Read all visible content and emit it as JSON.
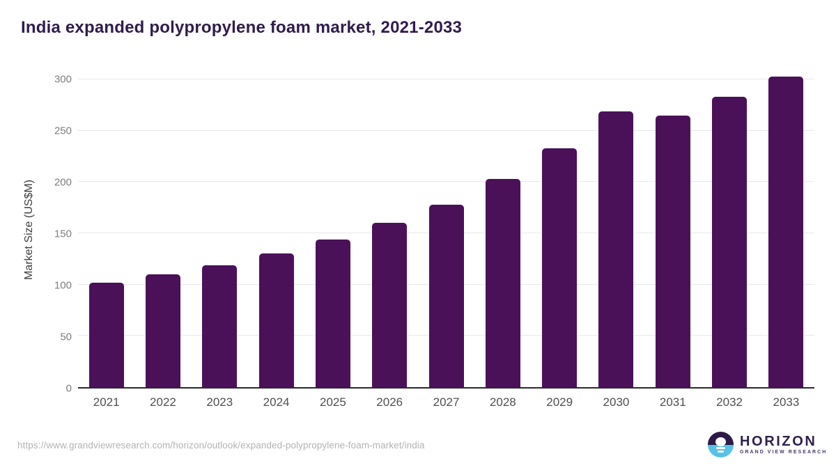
{
  "title": "India expanded polypropylene foam market, 2021-2033",
  "chart_data": {
    "type": "bar",
    "categories": [
      "2021",
      "2022",
      "2023",
      "2024",
      "2025",
      "2026",
      "2027",
      "2028",
      "2029",
      "2030",
      "2031",
      "2032",
      "2033"
    ],
    "values": [
      102,
      110,
      119,
      130,
      144,
      160,
      178,
      203,
      233,
      269,
      265,
      283,
      303
    ],
    "title": "India expanded polypropylene foam market, 2021-2033",
    "xlabel": "",
    "ylabel": "Market Size (US$M)",
    "ylim": [
      0,
      300
    ],
    "yticks": [
      0,
      50,
      100,
      150,
      200,
      250,
      300
    ],
    "grid": true,
    "legend": "none",
    "bar_color": "#4a1159"
  },
  "colors": {
    "title": "#2f1c4c",
    "bar": "#4a1159",
    "gridline": "#e8e8e8",
    "axis_line": "#2b2b2b",
    "y_tick_label": "#7d7d7d",
    "x_tick_label": "#4f4f4f",
    "source_url": "#b3b3b3",
    "logo_dark_purple": "#2e1a47",
    "logo_light_blue": "#58c1e8"
  },
  "footer": {
    "source_url": "https://www.grandviewresearch.com/horizon/outlook/expanded-polypropylene-foam-market/india",
    "logo": {
      "icon": "horizon-sunrise-icon",
      "name": "HORIZON",
      "subtitle": "GRAND VIEW RESEARCH"
    }
  }
}
